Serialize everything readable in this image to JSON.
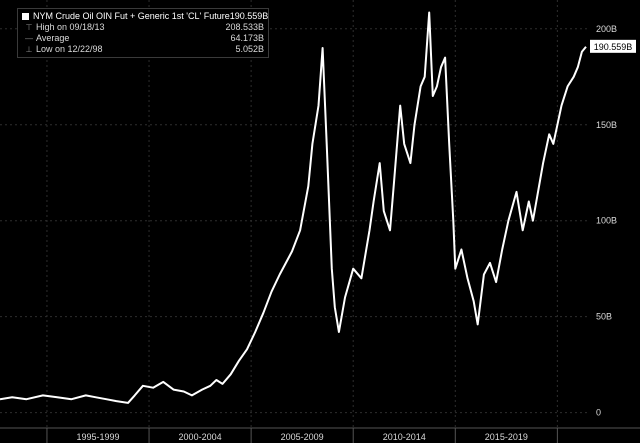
{
  "legend": {
    "title": "NYM Crude Oil OIN Fut + Generic 1st 'CL' Future",
    "title_value": "190.559B",
    "stats": [
      {
        "label": "High on 09/18/13",
        "value": "208.533B",
        "icon": "high-marker-icon"
      },
      {
        "label": "Average",
        "value": "64.173B",
        "icon": "average-line-icon"
      },
      {
        "label": "Low on 12/22/98",
        "value": "5.052B",
        "icon": "low-marker-icon"
      }
    ]
  },
  "colors": {
    "background": "#000000",
    "line": "#ffffff",
    "grid": "#2e2e2e",
    "text": "#d9d9d9"
  },
  "chart_data": {
    "type": "line",
    "title": "",
    "xlabel": "",
    "ylabel": "",
    "ylim": [
      -8,
      215
    ],
    "yticks": [
      0,
      50,
      100,
      150,
      200
    ],
    "ytick_labels": [
      "0",
      "50B",
      "100B",
      "150B",
      "200B"
    ],
    "xlim": [
      1992.7,
      2021.5
    ],
    "x_periods": [
      {
        "label": "1995-1999",
        "start": 1995,
        "end": 2000
      },
      {
        "label": "2000-2004",
        "start": 2000,
        "end": 2005
      },
      {
        "label": "2005-2009",
        "start": 2005,
        "end": 2010
      },
      {
        "label": "2010-2014",
        "start": 2010,
        "end": 2015
      },
      {
        "label": "2015-2019",
        "start": 2015,
        "end": 2020
      }
    ],
    "last_value_label": "190.559B",
    "grid": true,
    "legend_position": "top-left",
    "series": [
      {
        "name": "NYM Crude Oil OIN Fut + Generic 1st 'CL' Future",
        "x": [
          1992.7,
          1993.3,
          1994.0,
          1994.8,
          1995.5,
          1996.2,
          1996.9,
          1997.4,
          1997.9,
          1998.4,
          1998.97,
          1999.3,
          1999.7,
          2000.2,
          2000.7,
          2001.2,
          2001.7,
          2002.1,
          2002.6,
          2003.0,
          2003.3,
          2003.6,
          2004.0,
          2004.4,
          2004.8,
          2005.2,
          2005.6,
          2006.0,
          2006.4,
          2006.8,
          2007.0,
          2007.4,
          2007.8,
          2008.0,
          2008.3,
          2008.5,
          2008.7,
          2008.95,
          2009.1,
          2009.3,
          2009.6,
          2010.0,
          2010.4,
          2010.8,
          2011.0,
          2011.3,
          2011.5,
          2011.8,
          2012.0,
          2012.3,
          2012.5,
          2012.8,
          2013.0,
          2013.3,
          2013.5,
          2013.72,
          2013.9,
          2014.1,
          2014.3,
          2014.5,
          2014.7,
          2014.9,
          2015.0,
          2015.3,
          2015.6,
          2015.9,
          2016.1,
          2016.4,
          2016.7,
          2017.0,
          2017.3,
          2017.6,
          2018.0,
          2018.3,
          2018.6,
          2018.8,
          2019.0,
          2019.3,
          2019.6,
          2019.8,
          2020.0,
          2020.2,
          2020.5,
          2020.8,
          2021.0,
          2021.2,
          2021.4
        ],
        "y": [
          7,
          8,
          7,
          9,
          8,
          7,
          9,
          8,
          7,
          6,
          5.1,
          9,
          14,
          13,
          16,
          12,
          11,
          9,
          12,
          14,
          17,
          15,
          20,
          27,
          33,
          42,
          52,
          63,
          72,
          80,
          84,
          95,
          118,
          140,
          160,
          190,
          140,
          75,
          55,
          42,
          60,
          75,
          70,
          95,
          110,
          130,
          105,
          95,
          120,
          160,
          140,
          130,
          150,
          170,
          175,
          208.5,
          165,
          170,
          180,
          185,
          140,
          100,
          75,
          85,
          70,
          58,
          46,
          72,
          78,
          68,
          85,
          100,
          115,
          95,
          110,
          100,
          112,
          130,
          145,
          140,
          150,
          160,
          170,
          175,
          180,
          188,
          190.6
        ]
      }
    ]
  }
}
